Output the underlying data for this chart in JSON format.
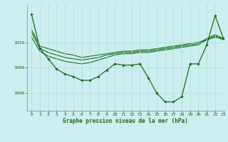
{
  "bg_color": "#cceef0",
  "grid_color": "#aadddd",
  "line_color": "#1a6b1a",
  "xlabel": "Graphe pression niveau de la mer (hPa)",
  "xlim": [
    -0.5,
    23
  ],
  "ylim": [
    1007.3,
    1011.5
  ],
  "yticks": [
    1008,
    1009,
    1010
  ],
  "xticks": [
    0,
    1,
    2,
    3,
    4,
    5,
    6,
    7,
    8,
    9,
    10,
    11,
    12,
    13,
    14,
    15,
    16,
    17,
    18,
    19,
    20,
    21,
    22,
    23
  ],
  "series_plain": [
    [
      1010.5,
      1009.85,
      1009.75,
      1009.65,
      1009.55,
      1009.5,
      1009.4,
      1009.45,
      1009.5,
      1009.55,
      1009.6,
      1009.65,
      1009.65,
      1009.7,
      1009.7,
      1009.75,
      1009.8,
      1009.85,
      1009.9,
      1009.95,
      1010.0,
      1010.1,
      1010.2,
      1010.15
    ],
    [
      1010.4,
      1009.75,
      1009.6,
      1009.5,
      1009.4,
      1009.35,
      1009.3,
      1009.35,
      1009.4,
      1009.5,
      1009.55,
      1009.6,
      1009.6,
      1009.65,
      1009.65,
      1009.7,
      1009.75,
      1009.8,
      1009.85,
      1009.9,
      1009.95,
      1010.15,
      1010.3,
      1010.15
    ],
    [
      1010.2,
      1009.65,
      1009.45,
      1009.35,
      1009.25,
      1009.2,
      1009.15,
      1009.2,
      1009.3,
      1009.4,
      1009.5,
      1009.55,
      1009.55,
      1009.6,
      1009.6,
      1009.65,
      1009.7,
      1009.75,
      1009.8,
      1009.85,
      1009.9,
      1010.1,
      1010.25,
      1010.1
    ]
  ],
  "series_marker": [
    1011.1,
    1009.75,
    1009.35,
    1008.95,
    1008.75,
    1008.65,
    1008.5,
    1008.5,
    1008.65,
    1008.9,
    1009.15,
    1009.1,
    1009.1,
    1009.15,
    1008.6,
    1008.0,
    1007.65,
    1007.65,
    1007.85,
    1009.15,
    1009.15,
    1009.9,
    1011.05,
    1010.15
  ]
}
